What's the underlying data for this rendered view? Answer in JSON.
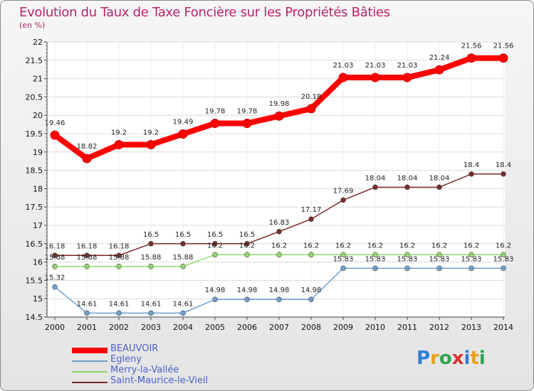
{
  "title": "Evolution du Taux de Taxe Foncière sur les Propriétés Bâties",
  "unit": "(en %)",
  "logo": "Proxiti",
  "chart_data": {
    "type": "line",
    "title": "Evolution du Taux de Taxe Foncière sur les Propriétés Bâties",
    "ylabel": "(en %)",
    "xlabel": "",
    "ylim": [
      14.5,
      22
    ],
    "yticks": [
      "14.5",
      "15",
      "15.5",
      "16",
      "16.5",
      "17",
      "17.5",
      "18",
      "18.5",
      "19",
      "19.5",
      "20",
      "20.5",
      "21",
      "21.5",
      "22"
    ],
    "categories": [
      "2000",
      "2001",
      "2002",
      "2003",
      "2004",
      "2005",
      "2006",
      "2007",
      "2008",
      "2009",
      "2010",
      "2011",
      "2012",
      "2013",
      "2014"
    ],
    "series": [
      {
        "name": "BEAUVOIR",
        "color": "#ff0000",
        "values": [
          19.46,
          18.82,
          19.2,
          19.2,
          19.49,
          19.78,
          19.78,
          19.98,
          20.18,
          21.03,
          21.03,
          21.03,
          21.24,
          21.56,
          21.56
        ],
        "labels": [
          "19.46",
          "18.82",
          "19.2",
          "19.2",
          "19.49",
          "19.78",
          "19.78",
          "19.98",
          "20.18",
          "21.03",
          "21.03",
          "21.03",
          "21.24",
          "21.56",
          "21.56"
        ]
      },
      {
        "name": "Egleny",
        "color": "#6d9ecf",
        "values": [
          15.32,
          14.61,
          14.61,
          14.61,
          14.61,
          14.98,
          14.98,
          14.98,
          14.98,
          15.83,
          15.83,
          15.83,
          15.83,
          15.83,
          15.83
        ],
        "labels": [
          "15.32",
          "14.61",
          "14.61",
          "14.61",
          "14.61",
          "14.98",
          "14.98",
          "14.98",
          "14.98",
          "15.83",
          "15.83",
          "15.83",
          "15.83",
          "15.83",
          "15.83"
        ]
      },
      {
        "name": "Merry-la-Vallée",
        "color": "#8fd86a",
        "values": [
          15.88,
          15.88,
          15.88,
          15.88,
          15.88,
          16.2,
          16.2,
          16.2,
          16.2,
          16.2,
          16.2,
          16.2,
          16.2,
          16.2,
          16.2
        ],
        "labels": [
          "15.88",
          "15.88",
          "15.88",
          "15.88",
          "15.88",
          "16.2",
          "16.2",
          "16.2",
          "16.2",
          "16.2",
          "16.2",
          "16.2",
          "16.2",
          "16.2",
          "16.2"
        ]
      },
      {
        "name": "Saint-Maurice-le-Vieil",
        "color": "#7a2a2a",
        "values": [
          16.18,
          16.18,
          16.18,
          16.5,
          16.5,
          16.5,
          16.5,
          16.83,
          17.17,
          17.69,
          18.04,
          18.04,
          18.04,
          18.4,
          18.4
        ],
        "labels": [
          "16.18",
          "16.18",
          "16.18",
          "16.5",
          "16.5",
          "16.5",
          "16.5",
          "16.83",
          "17.17",
          "17.69",
          "18.04",
          "18.04",
          "18.04",
          "18.4",
          "18.4"
        ]
      }
    ]
  }
}
